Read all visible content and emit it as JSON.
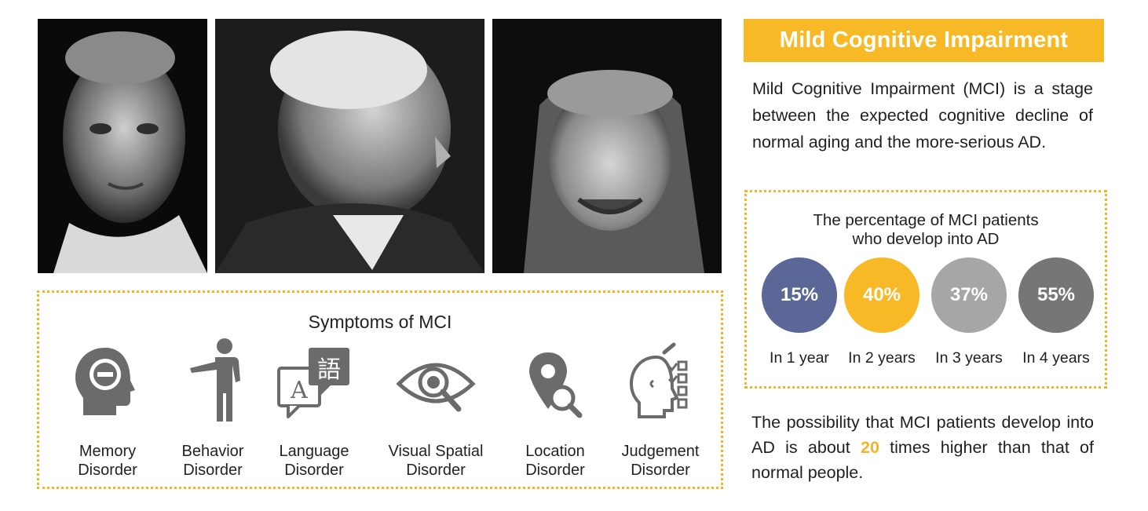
{
  "title": "Mild Cognitive Impairment",
  "intro": "Mild Cognitive Impairment (MCI) is a stage between the expected cognitive decline of normal aging and the more-serious AD.",
  "percentage_panel": {
    "title_line1": "The percentage of MCI patients",
    "title_line2": "who develop into AD",
    "items": [
      {
        "value": "15%",
        "period": "In 1 year",
        "color": "#5b6796"
      },
      {
        "value": "40%",
        "period": "In 2 years",
        "color": "#f7b925"
      },
      {
        "value": "37%",
        "period": "In 3 years",
        "color": "#a6a6a6"
      },
      {
        "value": "55%",
        "period": "In 4 years",
        "color": "#767676"
      }
    ]
  },
  "conclusion": {
    "before": "The possibility that MCI patients develop into AD is about ",
    "highlight": "20",
    "after": " times higher than that of normal people.",
    "highlight_color": "#f2b527"
  },
  "symptoms": {
    "title": "Symptoms of MCI",
    "items": [
      {
        "line1": "Memory",
        "line2": "Disorder",
        "icon": "head-minus-icon"
      },
      {
        "line1": "Behavior",
        "line2": "Disorder",
        "icon": "person-pointing-icon"
      },
      {
        "line1": "Language",
        "line2": "Disorder",
        "icon": "speech-bubbles-icon"
      },
      {
        "line1": "Visual Spatial",
        "line2": "Disorder",
        "icon": "eye-search-icon"
      },
      {
        "line1": "Location",
        "line2": "Disorder",
        "icon": "map-pin-search-icon"
      },
      {
        "line1": "Judgement",
        "line2": "Disorder",
        "icon": "head-checklist-icon"
      }
    ]
  },
  "language_icon_glyphs": {
    "left": "A",
    "right": "語"
  },
  "photos": [
    "elderly-man-portrait",
    "elderly-man-profile",
    "elderly-woman-headscarf"
  ],
  "colors": {
    "accent": "#f7b925",
    "icon_gray": "#6b6b6b"
  }
}
